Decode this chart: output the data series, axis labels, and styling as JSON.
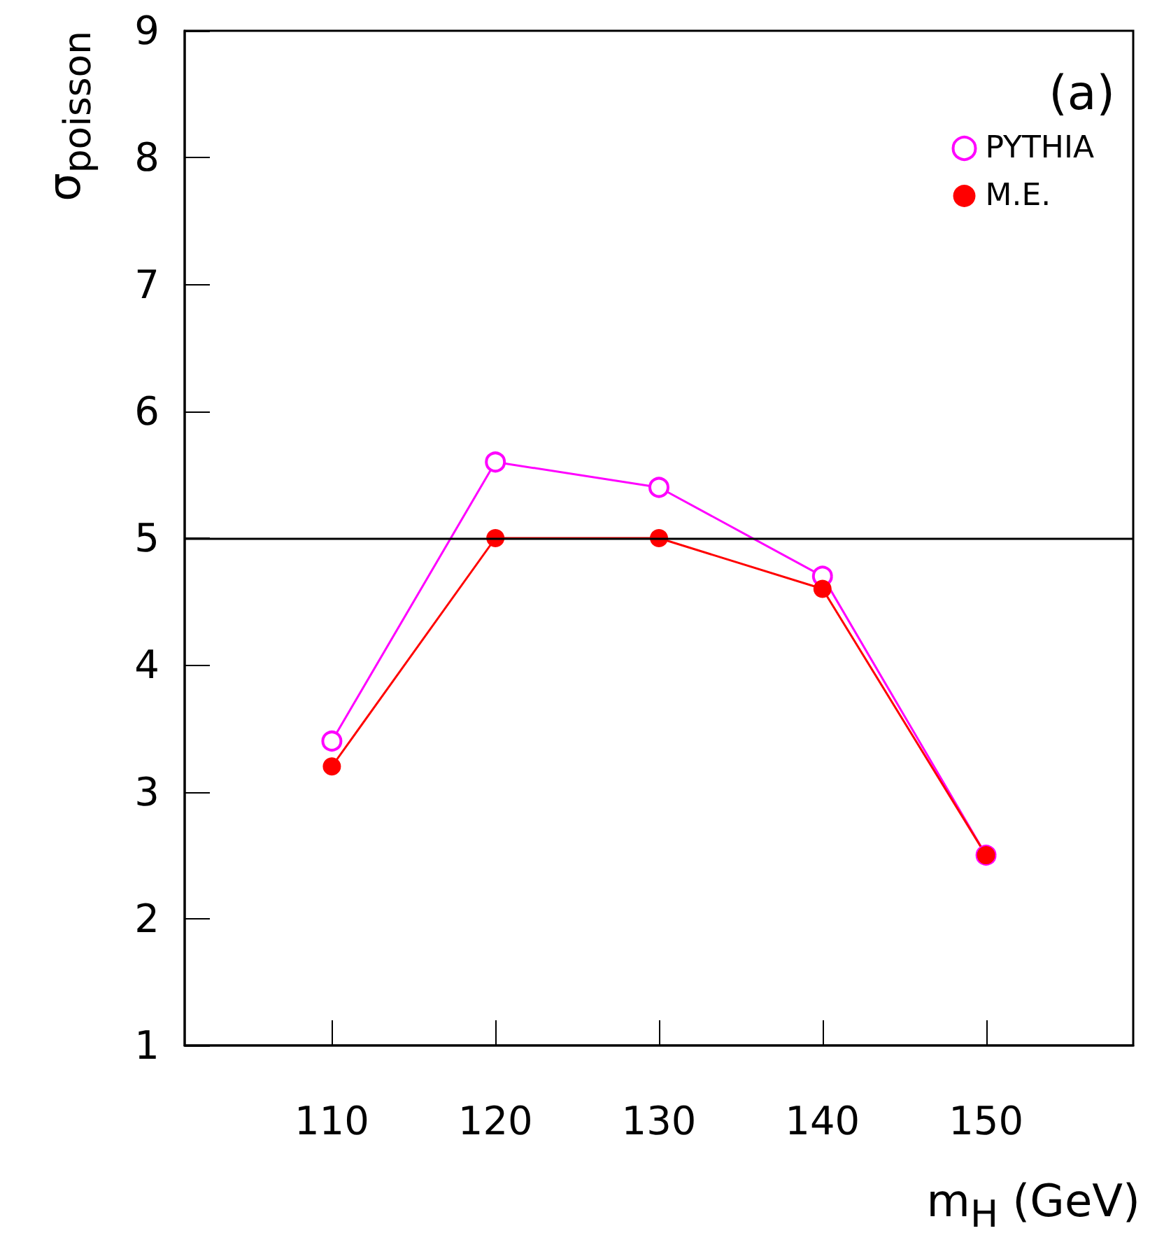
{
  "chart_data": {
    "type": "line",
    "xlabel": "m$_{H}$ (GeV)",
    "ylabel": "σ$_{poisson}$",
    "x": [
      110,
      120,
      130,
      140,
      150
    ],
    "series": [
      {
        "name": "PYTHIA",
        "color": "#ff00ff",
        "values": [
          3.4,
          5.6,
          5.4,
          4.7,
          2.5
        ]
      },
      {
        "name": "M.E.",
        "color": "#ff0000",
        "values": [
          3.2,
          5.0,
          5.0,
          4.6,
          2.5
        ]
      }
    ],
    "xlim": [
      101,
      159
    ],
    "xticks": [
      110,
      120,
      130,
      140,
      150
    ],
    "ylim": [
      1,
      9
    ],
    "yticks": [
      1,
      2,
      3,
      4,
      5,
      6,
      7,
      8,
      9
    ],
    "ref_lines": [
      {
        "axis": "y",
        "value": 5,
        "color": "#000000"
      }
    ],
    "annotations": [
      "(a)"
    ],
    "marker": "circle",
    "legend": "top right",
    "grid": false
  }
}
